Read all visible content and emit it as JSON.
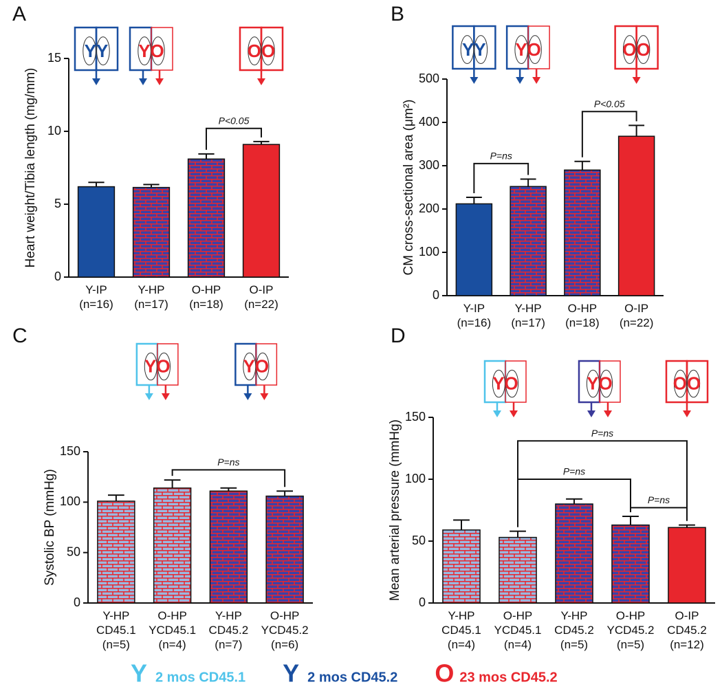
{
  "chart_data": [
    {
      "type": "bar",
      "panel": "A",
      "ylabel": "Heart weight/Tibia length (mg/mm)",
      "categories": [
        [
          "Y-IP",
          "(n=16)"
        ],
        [
          "Y-HP",
          "(n=17)"
        ],
        [
          "O-HP",
          "(n=18)"
        ],
        [
          "O-IP",
          "(n=22)"
        ]
      ],
      "values": [
        6.2,
        6.15,
        8.1,
        9.1
      ],
      "errors": [
        0.3,
        0.2,
        0.35,
        0.2
      ],
      "colors": [
        "#1a4fa0",
        "#3a42a8",
        "#3a42a8",
        "#e8262d"
      ],
      "mortar": [
        null,
        "#e8262d",
        "#e8262d",
        null
      ],
      "ylim": [
        0,
        15
      ],
      "yticks": [
        0,
        5,
        10,
        15
      ],
      "brackets": [
        {
          "from": 2,
          "to": 3,
          "y": 10.2,
          "label": "P<0.05"
        }
      ],
      "icons": [
        "YY",
        "YO",
        null,
        "OO"
      ],
      "icon_colors": [
        [
          "#1a4fa0",
          "#1a4fa0"
        ],
        [
          "#1a4fa0",
          "#e8262d"
        ],
        null,
        [
          "#e8262d",
          "#e8262d"
        ]
      ]
    },
    {
      "type": "bar",
      "panel": "B",
      "ylabel": "CM cross-sectional area (μm²)",
      "categories": [
        [
          "Y-IP",
          "(n=16)"
        ],
        [
          "Y-HP",
          "(n=17)"
        ],
        [
          "O-HP",
          "(n=18)"
        ],
        [
          "O-IP",
          "(n=22)"
        ]
      ],
      "values": [
        212,
        252,
        290,
        368
      ],
      "errors": [
        15,
        17,
        20,
        25
      ],
      "colors": [
        "#1a4fa0",
        "#3a42a8",
        "#3a42a8",
        "#e8262d"
      ],
      "mortar": [
        null,
        "#e8262d",
        "#e8262d",
        null
      ],
      "ylim": [
        0,
        500
      ],
      "yticks": [
        0,
        100,
        200,
        300,
        400,
        500
      ],
      "brackets": [
        {
          "from": 0,
          "to": 1,
          "y": 305,
          "label": "P=ns"
        },
        {
          "from": 2,
          "to": 3,
          "y": 425,
          "label": "P<0.05"
        }
      ],
      "icons": [
        "YY",
        "YO",
        null,
        "OO"
      ],
      "icon_colors": [
        [
          "#1a4fa0",
          "#1a4fa0"
        ],
        [
          "#1a4fa0",
          "#e8262d"
        ],
        null,
        [
          "#e8262d",
          "#e8262d"
        ]
      ]
    },
    {
      "type": "bar",
      "panel": "C",
      "ylabel": "Systolic BP (mmHg)",
      "categories": [
        [
          "Y-HP",
          "CD45.1",
          "(n=5)"
        ],
        [
          "O-HP",
          "YCD45.1",
          "(n=4)"
        ],
        [
          "Y-HP",
          "CD45.2",
          "(n=7)"
        ],
        [
          "O-HP",
          "YCD45.2",
          "(n=6)"
        ]
      ],
      "values": [
        101,
        114,
        111,
        106
      ],
      "errors": [
        6,
        8,
        3,
        5
      ],
      "colors": [
        "#9ab8e0",
        "#9ab8e0",
        "#3a42a8",
        "#3a42a8"
      ],
      "mortar": [
        "#e8262d",
        "#e8262d",
        "#e8262d",
        "#e8262d"
      ],
      "ylim": [
        0,
        150
      ],
      "yticks": [
        0,
        50,
        100,
        150
      ],
      "brackets": [
        {
          "from": 1,
          "to": 3,
          "y": 132,
          "label": "P=ns"
        }
      ],
      "icons": [
        "YO",
        null,
        "YO",
        null
      ],
      "icon_colors": [
        [
          "#4fc3ea",
          "#e8262d"
        ],
        null,
        [
          "#1a4fa0",
          "#e8262d"
        ],
        null
      ]
    },
    {
      "type": "bar",
      "panel": "D",
      "ylabel": "Mean arterial pressure (mmHg)",
      "categories": [
        [
          "Y-HP",
          "CD45.1",
          "(n=4)"
        ],
        [
          "O-HP",
          "YCD45.1",
          "(n=4)"
        ],
        [
          "Y-HP",
          "CD45.2",
          "(n=5)"
        ],
        [
          "O-HP",
          "YCD45.2",
          "(n=5)"
        ],
        [
          "O-IP",
          "CD45.2",
          "(n=12)"
        ]
      ],
      "values": [
        59,
        53,
        80,
        63,
        61
      ],
      "errors": [
        8,
        5,
        4,
        7,
        2
      ],
      "colors": [
        "#9ab8e0",
        "#9ab8e0",
        "#3a42a8",
        "#3a42a8",
        "#e8262d"
      ],
      "mortar": [
        "#e8262d",
        "#e8262d",
        "#e8262d",
        "#e8262d",
        null
      ],
      "ylim": [
        0,
        150
      ],
      "yticks": [
        0,
        50,
        100,
        150
      ],
      "brackets": [
        {
          "from": 1,
          "to": 4,
          "y": 131,
          "label": "P=ns"
        },
        {
          "from": 1,
          "to": 3,
          "y": 100,
          "label": "P=ns"
        },
        {
          "from": 3,
          "to": 4,
          "y": 77,
          "label": "P=ns"
        }
      ],
      "icons": [
        null,
        "YO",
        null,
        "YO",
        "OO"
      ],
      "icon_colors": [
        null,
        [
          "#4fc3ea",
          "#e8262d"
        ],
        null,
        [
          "#3a3a9a",
          "#e8262d"
        ],
        [
          "#e8262d",
          "#e8262d"
        ]
      ]
    }
  ],
  "legend": [
    {
      "symbol": "Y",
      "text": "2 mos CD45.1",
      "color": "#4fc3ea"
    },
    {
      "symbol": "Y",
      "text": "2 mos CD45.2",
      "color": "#1a4fa0"
    },
    {
      "symbol": "O",
      "text": "23 mos CD45.2",
      "color": "#e8262d"
    }
  ]
}
